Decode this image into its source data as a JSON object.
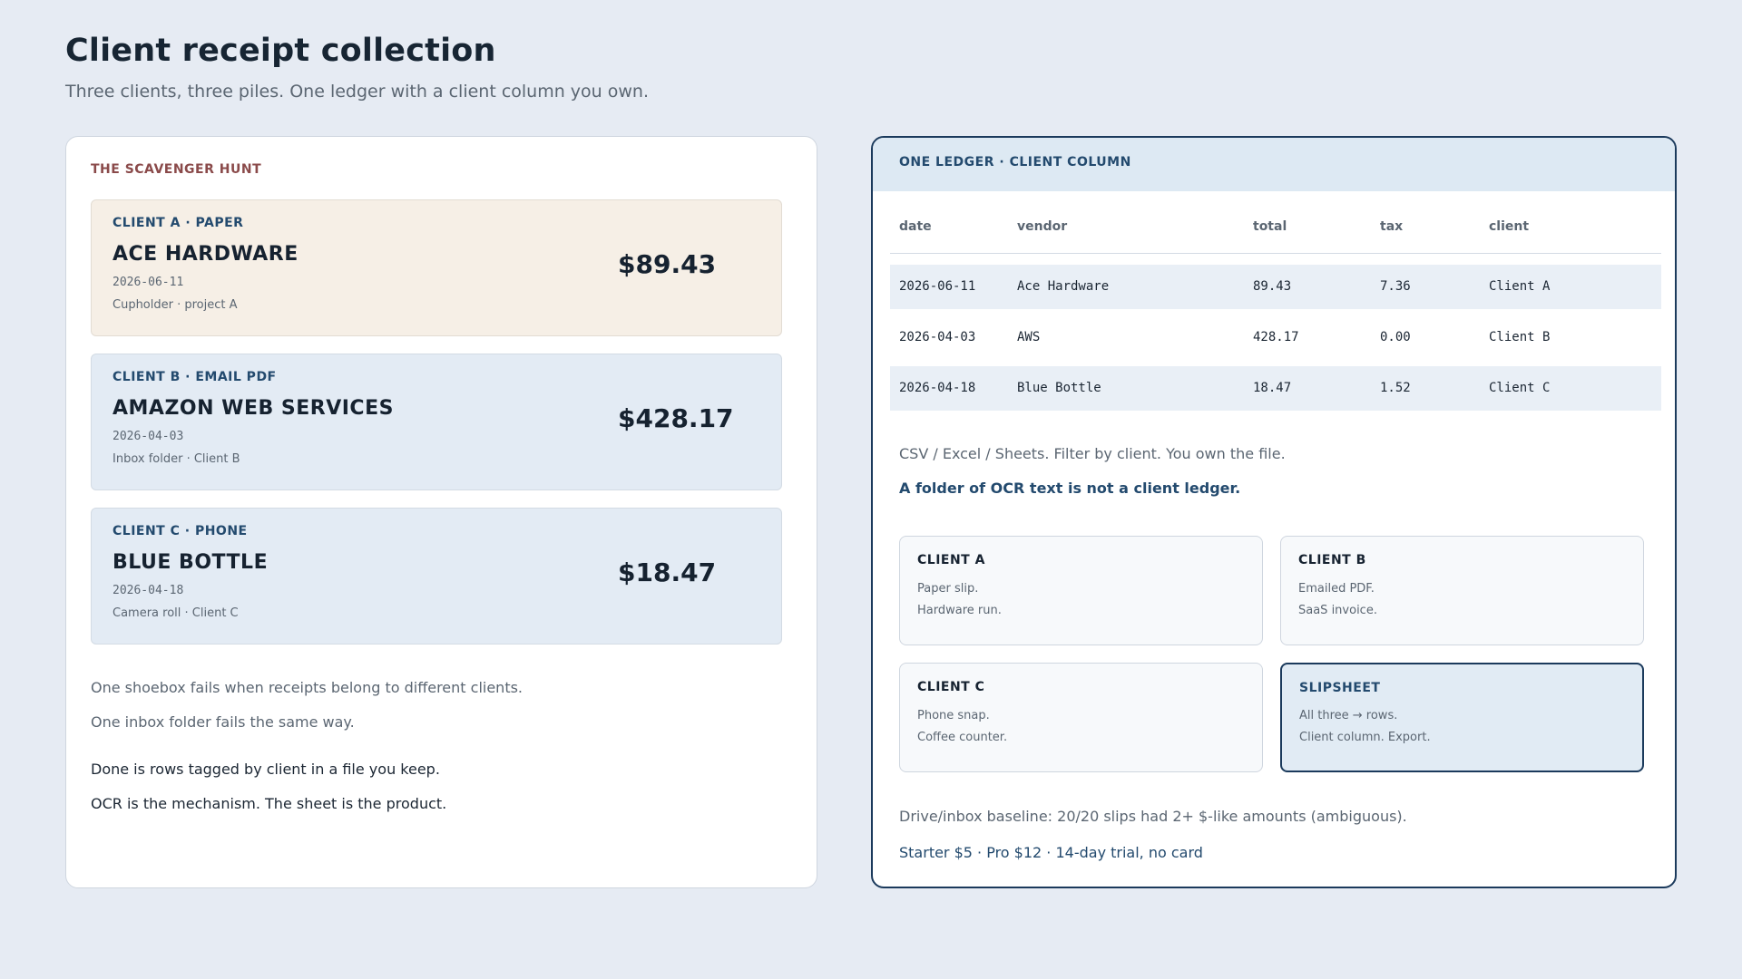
{
  "header": {
    "title": "Client receipt collection",
    "subtitle": "Three clients, three piles. One ledger with a client column you own."
  },
  "left": {
    "heading": "THE SCAVENGER HUNT",
    "receipts": [
      {
        "tag": "CLIENT A · PAPER",
        "vendor": "ACE HARDWARE",
        "date": "2026-06-11",
        "note": "Cupholder · project A",
        "amount": "$89.43"
      },
      {
        "tag": "CLIENT B · EMAIL PDF",
        "vendor": "AMAZON WEB SERVICES",
        "date": "2026-04-03",
        "note": "Inbox folder · Client B",
        "amount": "$428.17"
      },
      {
        "tag": "CLIENT C · PHONE",
        "vendor": "BLUE BOTTLE",
        "date": "2026-04-18",
        "note": "Camera roll · Client C",
        "amount": "$18.47"
      }
    ],
    "text1": "One shoebox fails when receipts belong to different clients.",
    "text2": "One inbox folder fails the same way.",
    "text3": "Done is rows tagged by client in a file you keep.",
    "text4": "OCR is the mechanism. The sheet is the product."
  },
  "right": {
    "heading": "ONE LEDGER · CLIENT COLUMN",
    "columns": [
      "date",
      "vendor",
      "total",
      "tax",
      "client"
    ],
    "rows": [
      [
        "2026-06-11",
        "Ace Hardware",
        "89.43",
        "7.36",
        "Client A"
      ],
      [
        "2026-04-03",
        "AWS",
        "428.17",
        "0.00",
        "Client B"
      ],
      [
        "2026-04-18",
        "Blue Bottle",
        "18.47",
        "1.52",
        "Client C"
      ]
    ],
    "export_text": "CSV / Excel / Sheets. Filter by client. You own the file.",
    "emphasis": "A folder of OCR text is not a client ledger.",
    "cards": [
      {
        "title": "CLIENT A",
        "line1": "Paper slip.",
        "line2": "Hardware run."
      },
      {
        "title": "CLIENT B",
        "line1": "Emailed PDF.",
        "line2": "SaaS invoice."
      },
      {
        "title": "CLIENT C",
        "line1": "Phone snap.",
        "line2": "Coffee counter."
      },
      {
        "title": "SLIPSHEET",
        "line1": "All three → rows.",
        "line2": "Client column. Export."
      }
    ],
    "baseline": "Drive/inbox baseline: 20/20 slips had 2+ $-like amounts (ambiguous).",
    "pricing": "Starter $5 · Pro $12 · 14-day trial, no card"
  }
}
